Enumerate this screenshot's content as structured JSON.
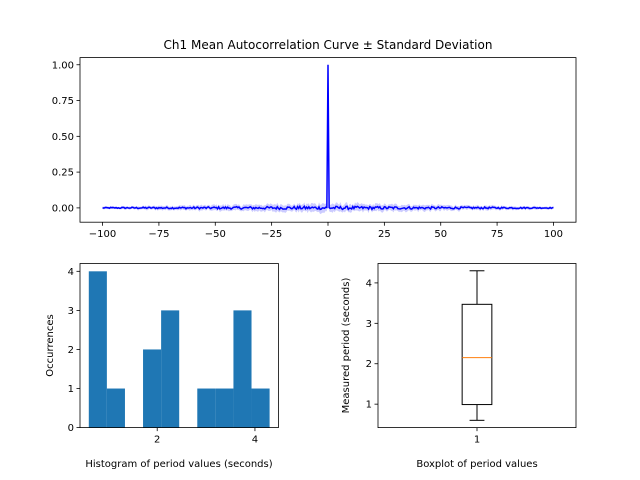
{
  "chart_data": [
    {
      "type": "line",
      "title": "Ch1 Mean Autocorrelation Curve ± Standard Deviation",
      "xlabel": "",
      "ylabel": "",
      "xlim": [
        -110,
        110
      ],
      "ylim": [
        -0.1,
        1.05
      ],
      "xticks": [
        -100,
        -75,
        -50,
        -25,
        0,
        25,
        50,
        75,
        100
      ],
      "yticks": [
        0.0,
        0.25,
        0.5,
        0.75,
        1.0
      ],
      "ytick_labels": [
        "0.00",
        "0.25",
        "0.50",
        "0.75",
        "1.00"
      ],
      "lag_range": [
        -100,
        100
      ],
      "peak": {
        "x": 0,
        "y": 1.0
      },
      "baseline": 0.0,
      "noise_amplitude": 0.012,
      "std_band_halfwidth": 0.03,
      "line_color": "#0000ff",
      "band_color": "#0000ff",
      "grid": false
    },
    {
      "type": "bar",
      "subtype": "histogram",
      "title": "",
      "xlabel": "Histogram of period values (seconds)",
      "ylabel": "Occurrences",
      "bin_edges": [
        0.6,
        0.97,
        1.34,
        1.71,
        2.08,
        2.45,
        2.82,
        3.19,
        3.56,
        3.93,
        4.3
      ],
      "values": [
        4,
        1,
        0,
        2,
        3,
        0,
        1,
        1,
        3,
        1
      ],
      "xlim": [
        0.42,
        4.48
      ],
      "ylim": [
        0,
        4.2
      ],
      "xticks": [
        2,
        4
      ],
      "yticks": [
        0,
        1,
        2,
        3,
        4
      ],
      "bar_color": "#1f77b4",
      "grid": false
    },
    {
      "type": "boxplot",
      "title": "",
      "xlabel": "Boxplot of period values",
      "ylabel": "Measured period (seconds)",
      "categories": [
        "1"
      ],
      "box": {
        "whisker_low": 0.6,
        "q1": 0.99,
        "median": 2.15,
        "q3": 3.47,
        "whisker_high": 4.3
      },
      "xlim": [
        0.5,
        1.5
      ],
      "ylim": [
        0.42,
        4.48
      ],
      "yticks": [
        1,
        2,
        3,
        4
      ],
      "median_color": "#ff7f0e",
      "grid": false
    }
  ]
}
